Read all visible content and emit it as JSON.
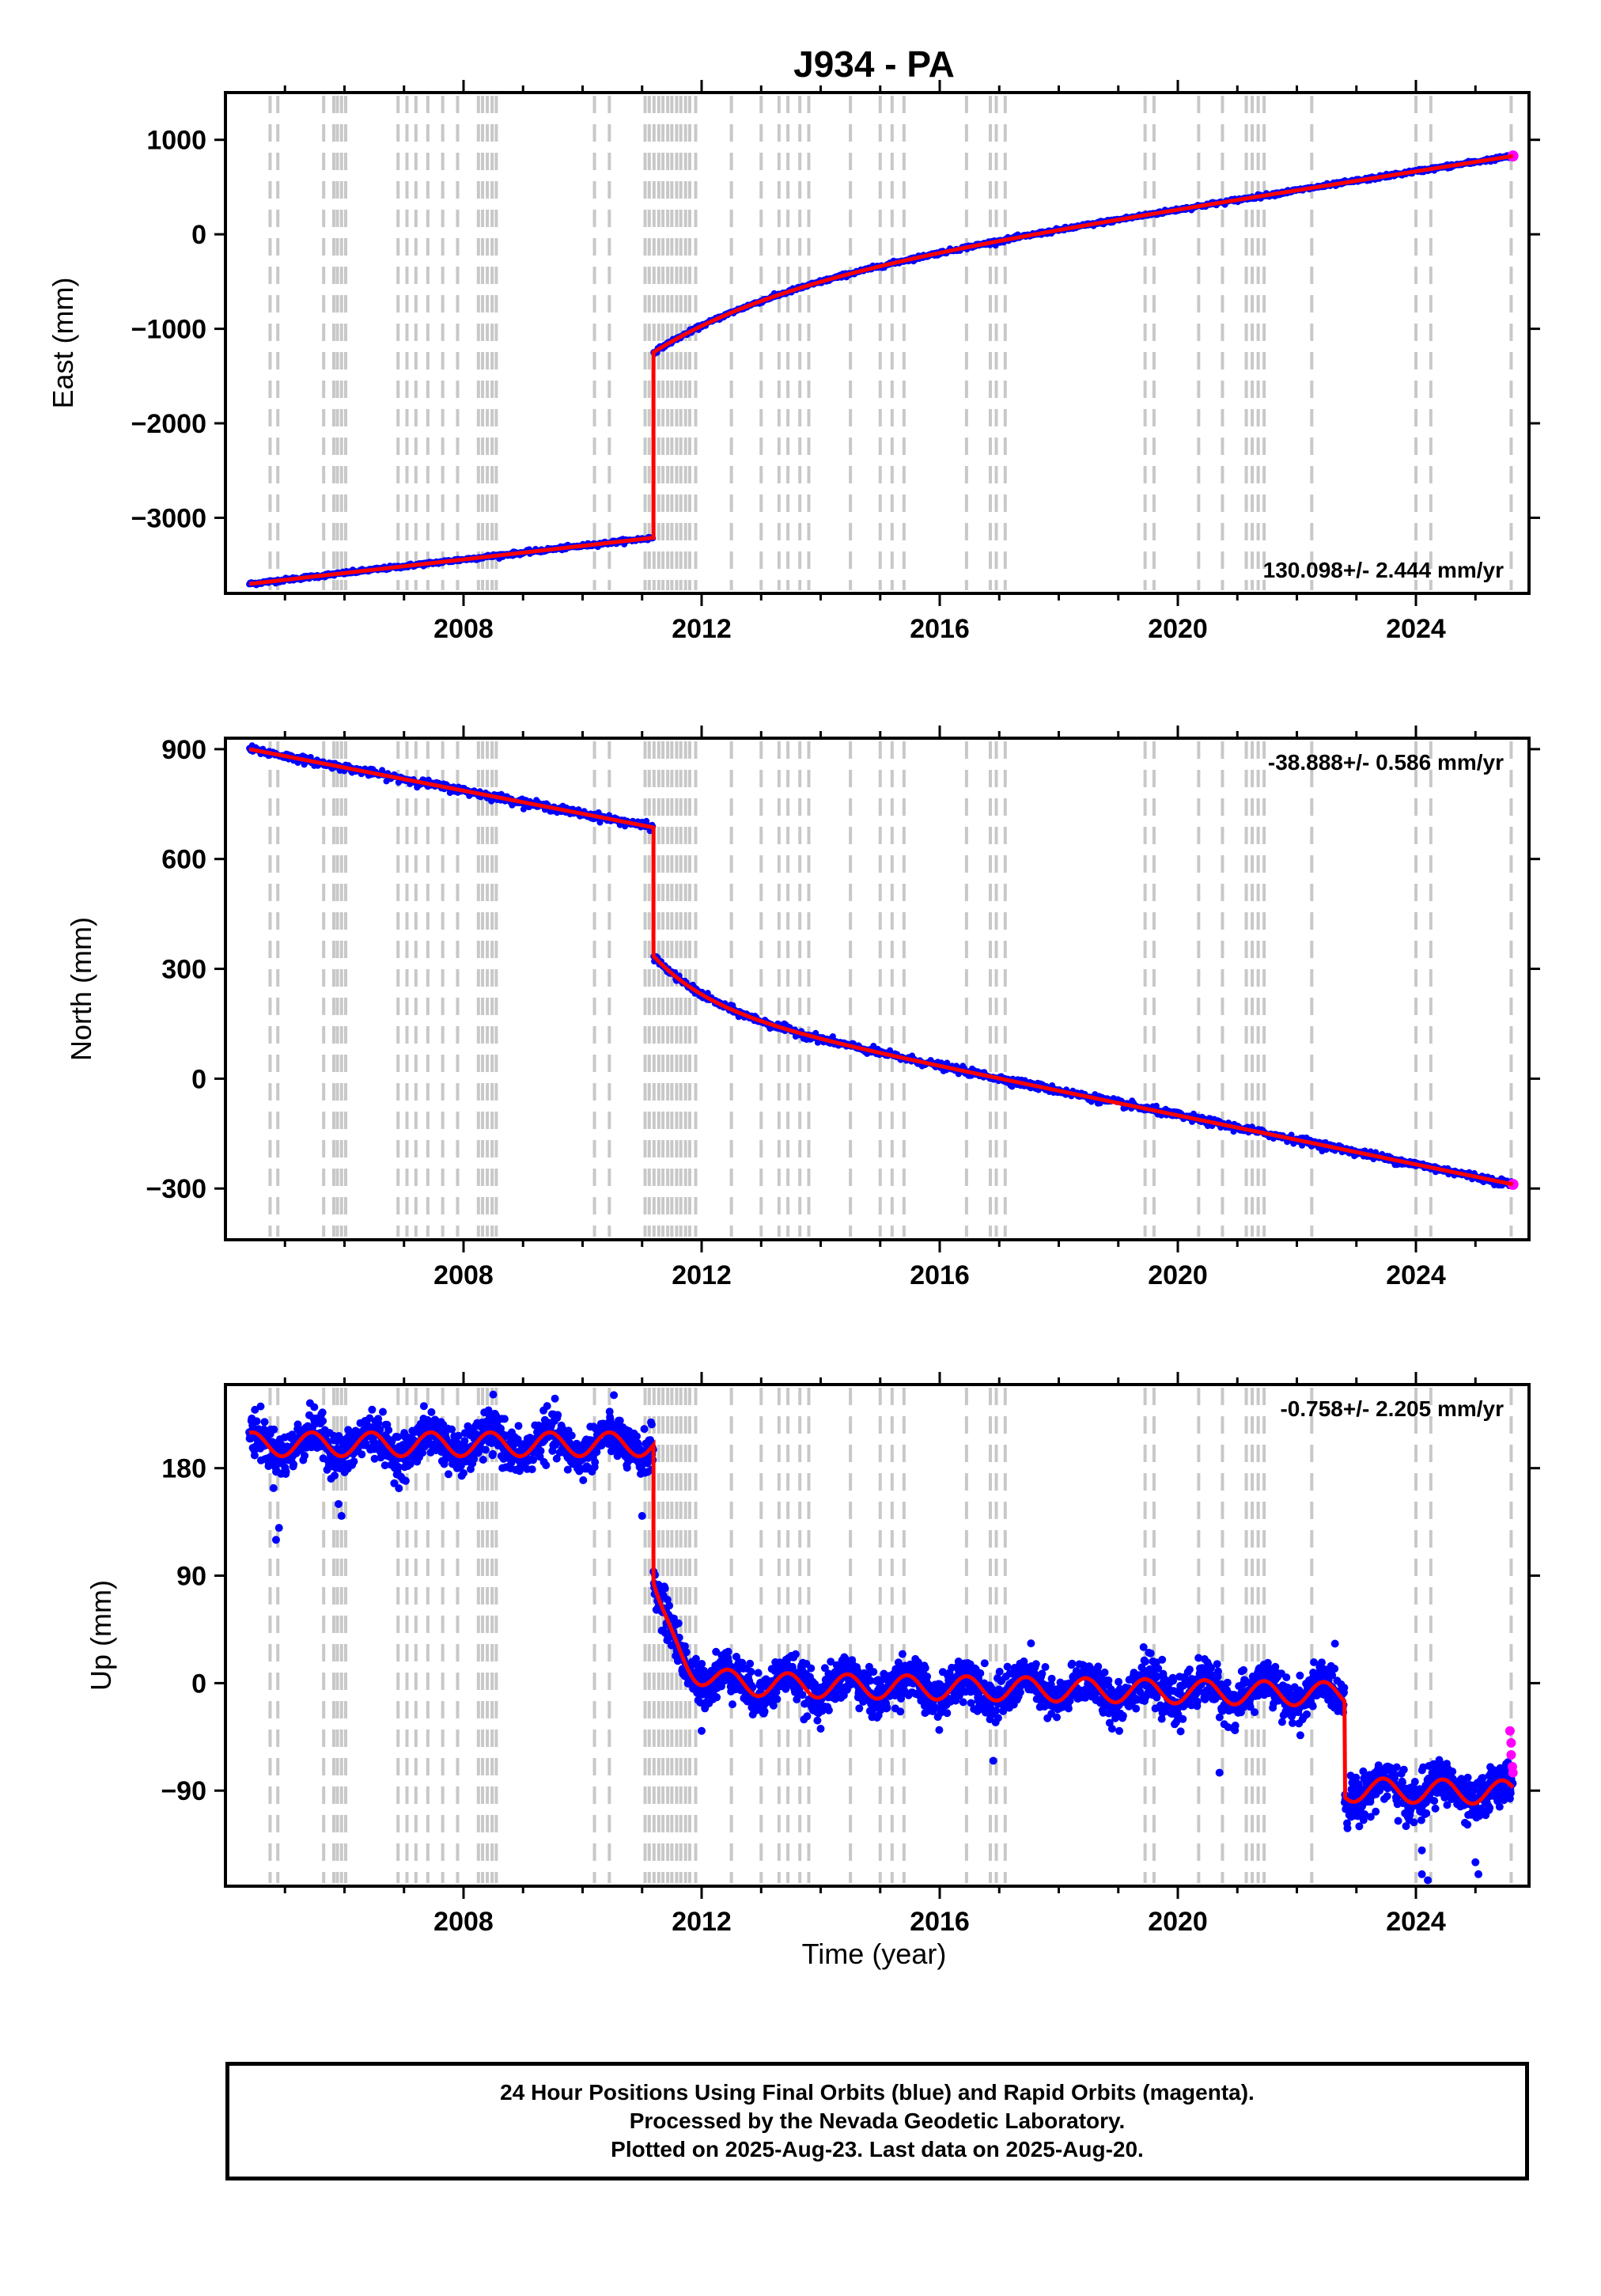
{
  "title": "J934 - PA",
  "xlabel": "Time (year)",
  "footer": {
    "line1": "24 Hour Positions Using Final Orbits (blue) and Rapid Orbits (magenta).",
    "line2": "Processed by the Nevada Geodetic Laboratory.",
    "line3": "Plotted on 2025-Aug-23. Last data on 2025-Aug-20."
  },
  "colors": {
    "final": "#0000ff",
    "rapid": "#ff00ff",
    "model": "#ff0000",
    "events": "#c8c8c8"
  },
  "chart_data": [
    {
      "type": "scatter",
      "component": "east",
      "ylabel": "East (mm)",
      "rate_text": "130.098+/- 2.444 mm/yr",
      "rate_position": "bottom-right",
      "xlim": [
        2004.0,
        2025.9
      ],
      "ylim": [
        -3800,
        1500
      ],
      "xticks": [
        "2008",
        "2012",
        "2016",
        "2020",
        "2024"
      ],
      "yticks": [
        1000,
        0,
        -1000,
        -2000,
        -3000
      ],
      "ytick_labels": [
        "1000",
        "0",
        "−1000",
        "−2000",
        "−3000"
      ],
      "data_range": [
        2004.4,
        2025.63
      ],
      "model": {
        "pre_start": -3700,
        "rate_pre": 72.0,
        "jump_time": 2011.19,
        "post_start": -1250,
        "post_decay_amp": 650,
        "post_decay_tau": 2.2,
        "rate_post": 99.0,
        "seasonal": 0
      },
      "noise": 10,
      "outliers": []
    },
    {
      "type": "scatter",
      "component": "north",
      "ylabel": "North (mm)",
      "rate_text": "-38.888+/- 0.586 mm/yr",
      "rate_position": "top-right",
      "xlim": [
        2004.0,
        2025.9
      ],
      "ylim": [
        -440,
        930
      ],
      "xticks": [
        "2008",
        "2012",
        "2016",
        "2020",
        "2024"
      ],
      "yticks": [
        900,
        600,
        300,
        0,
        -300
      ],
      "ytick_labels": [
        "900",
        "600",
        "300",
        "0",
        "−300"
      ],
      "data_range": [
        2004.4,
        2025.63
      ],
      "model": {
        "pre_start": 900,
        "rate_pre": -31.5,
        "jump_time": 2011.19,
        "post_start": 335,
        "post_decay_amp": -140,
        "post_decay_tau": 1.0,
        "rate_post": -33.5,
        "seasonal": 0
      },
      "noise": 5,
      "outliers": []
    },
    {
      "type": "scatter",
      "component": "up",
      "ylabel": "Up (mm)",
      "rate_text": "-0.758+/- 2.205 mm/yr",
      "rate_position": "top-right",
      "xlim": [
        2004.0,
        2025.9
      ],
      "ylim": [
        -170,
        250
      ],
      "xticks": [
        "2008",
        "2012",
        "2016",
        "2020",
        "2024"
      ],
      "yticks": [
        180,
        90,
        0,
        -90
      ],
      "ytick_labels": [
        "180",
        "90",
        "0",
        "−90"
      ],
      "data_range": [
        2004.4,
        2025.63
      ],
      "model": {
        "pre_start": 200,
        "rate_pre": 0,
        "jump_time": 2011.19,
        "post_start": 85,
        "post_decay_amp": -85,
        "post_decay_tau": 0.35,
        "rate_post": -0.8,
        "seasonal": 10,
        "step2_time": 2022.8,
        "step2_size": -80
      },
      "noise": 9,
      "outliers": [
        {
          "x": 2004.85,
          "y": 120
        },
        {
          "x": 2004.9,
          "y": 130
        },
        {
          "x": 2005.95,
          "y": 140
        },
        {
          "x": 2005.9,
          "y": 150
        },
        {
          "x": 2011.0,
          "y": 140
        },
        {
          "x": 2012.0,
          "y": -40
        },
        {
          "x": 2016.9,
          "y": -65
        },
        {
          "x": 2020.7,
          "y": -75
        },
        {
          "x": 2024.1,
          "y": -140
        },
        {
          "x": 2024.1,
          "y": -160
        },
        {
          "x": 2024.2,
          "y": -165
        },
        {
          "x": 2025.0,
          "y": -150
        },
        {
          "x": 2025.05,
          "y": -160
        }
      ],
      "rapid_points": [
        {
          "x": 2025.58,
          "y": -40
        },
        {
          "x": 2025.6,
          "y": -50
        },
        {
          "x": 2025.6,
          "y": -60
        },
        {
          "x": 2025.62,
          "y": -70
        },
        {
          "x": 2025.63,
          "y": -75
        }
      ]
    }
  ],
  "event_lines": [
    2004.75,
    2004.88,
    2005.65,
    2005.82,
    2005.88,
    2005.95,
    2006.02,
    2006.9,
    2007.05,
    2007.2,
    2007.4,
    2007.65,
    2007.9,
    2008.25,
    2008.32,
    2008.4,
    2008.48,
    2008.55,
    2010.2,
    2010.45,
    2011.05,
    2011.12,
    2011.2,
    2011.28,
    2011.35,
    2011.43,
    2011.5,
    2011.58,
    2011.65,
    2011.73,
    2011.8,
    2011.9,
    2012.5,
    2013.0,
    2013.3,
    2013.45,
    2013.65,
    2013.8,
    2014.5,
    2015.0,
    2015.2,
    2015.4,
    2016.45,
    2016.85,
    2016.95,
    2017.1,
    2019.45,
    2019.6,
    2020.35,
    2020.75,
    2021.15,
    2021.25,
    2021.35,
    2021.45,
    2022.25,
    2024.0,
    2024.25,
    2025.6
  ]
}
